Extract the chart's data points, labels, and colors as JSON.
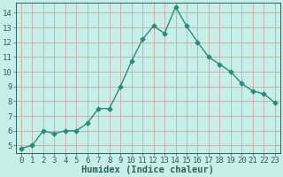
{
  "x": [
    0,
    1,
    2,
    3,
    4,
    5,
    6,
    7,
    8,
    9,
    10,
    11,
    12,
    13,
    14,
    15,
    16,
    17,
    18,
    19,
    20,
    21,
    22,
    23
  ],
  "y": [
    4.8,
    5.0,
    6.0,
    5.8,
    6.0,
    6.0,
    6.5,
    7.5,
    7.5,
    9.0,
    10.7,
    12.2,
    13.1,
    12.6,
    14.4,
    13.1,
    12.0,
    11.0,
    10.5,
    10.0,
    9.2,
    8.7,
    8.5,
    7.9
  ],
  "line_color": "#2d8b7a",
  "marker": "D",
  "marker_size": 2.5,
  "bg_color": "#c8eee8",
  "grid_color": "#c8a8a8",
  "xlabel": "Humidex (Indice chaleur)",
  "ylim": [
    4.5,
    14.7
  ],
  "xlim": [
    -0.5,
    23.5
  ],
  "yticks": [
    5,
    6,
    7,
    8,
    9,
    10,
    11,
    12,
    13,
    14
  ],
  "xtick_labels": [
    "0",
    "1",
    "2",
    "3",
    "4",
    "5",
    "6",
    "7",
    "8",
    "9",
    "10",
    "11",
    "12",
    "13",
    "14",
    "15",
    "16",
    "17",
    "18",
    "19",
    "20",
    "21",
    "22",
    "23"
  ],
  "label_fontsize": 7.5,
  "tick_fontsize": 6.5
}
